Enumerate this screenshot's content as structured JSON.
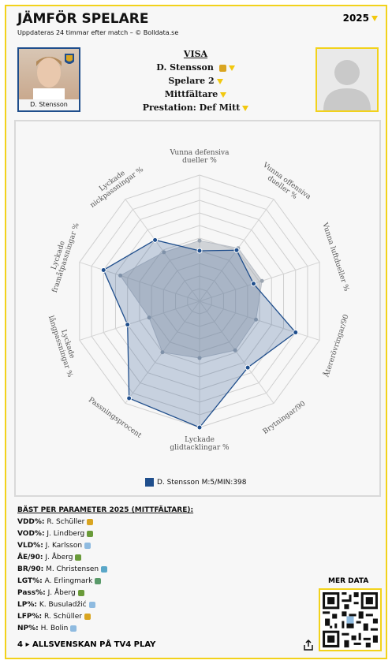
{
  "header": {
    "title": "JÄMFÖR SPELARE",
    "subtitle": "Uppdateras 24 timmar efter match – © Bolldata.se",
    "year": "2025"
  },
  "player1": {
    "name": "D. Stensson"
  },
  "visa": {
    "head": "VISA",
    "player1": "D. Stensson",
    "player2": "Spelare 2",
    "position": "Mittfältare",
    "performance": "Prestation: Def Mitt"
  },
  "chart_data": {
    "type": "radar",
    "axes": [
      "Vunna defensiva dueller %",
      "Vunna offensiva dueller %",
      "Vunna luftdueller %",
      "Återerövringar/90",
      "Brytningar/90",
      "Lyckade glidtacklingar %",
      "Passningsprocent",
      "Lyckade långpassningar %",
      "Lyckade framåtpassningar %",
      "Lyckade nickpassningar %"
    ],
    "axis_lines": [
      [
        "Vunna defensiva",
        "dueller %"
      ],
      [
        "Vunna offensiva",
        "dueller %"
      ],
      [
        "Vunna luftdueller %"
      ],
      [
        "Återerövringar/90"
      ],
      [
        "Brytningar/90"
      ],
      [
        "Lyckade",
        "glidtacklingar %"
      ],
      [
        "Passningsprocent"
      ],
      [
        "Lyckade",
        "långpassningar %"
      ],
      [
        "Lyckade",
        "framåtpassningar %"
      ],
      [
        "Lyckade",
        "nickpassningar %"
      ]
    ],
    "range": [
      0,
      100
    ],
    "series": [
      {
        "name": "D. Stensson M:5/MIN:398",
        "values": [
          40,
          50,
          45,
          80,
          65,
          100,
          95,
          60,
          80,
          60
        ],
        "color": "#1f4e8c"
      }
    ],
    "reference": {
      "values": [
        48,
        52,
        52,
        47,
        48,
        45,
        50,
        42,
        66,
        48
      ],
      "color": "#9aa4b0"
    }
  },
  "legend": {
    "label": "D. Stensson M:5/MIN:398"
  },
  "best": {
    "head": "BÄST PER PARAMETER 2025 (MITTFÄLTARE):",
    "rows": [
      {
        "key": "VDD%:",
        "name": "R. Schüller",
        "color": "#d9a521"
      },
      {
        "key": "VOD%:",
        "name": "J. Lindberg",
        "color": "#6a9b3a"
      },
      {
        "key": "VLD%:",
        "name": "J. Karlsson",
        "color": "#8fbbe0"
      },
      {
        "key": "ÅE/90:",
        "name": "J. Åberg",
        "color": "#6a9b3a"
      },
      {
        "key": "BR/90:",
        "name": "M. Christensen",
        "color": "#5aa7c8"
      },
      {
        "key": "LGT%:",
        "name": "A. Erlingmark",
        "color": "#5a9a6a"
      },
      {
        "key": "Pass%:",
        "name": "J. Åberg",
        "color": "#6a9b3a"
      },
      {
        "key": "LP%:",
        "name": "K. Busuladžić",
        "color": "#8fbbe0"
      },
      {
        "key": "LFP%:",
        "name": "R. Schüller",
        "color": "#d9a521"
      },
      {
        "key": "NP%:",
        "name": "H. Bolin",
        "color": "#8fbbe0"
      }
    ]
  },
  "mer_data": "MER DATA",
  "footer": {
    "brand": "4",
    "label": "ALLSVENSKAN PÅ TV4 PLAY"
  },
  "icons": [
    "club-crest-icon",
    "avatar-placeholder-icon",
    "chevron-down-icon",
    "play-icon",
    "share-icon",
    "qr-code"
  ]
}
